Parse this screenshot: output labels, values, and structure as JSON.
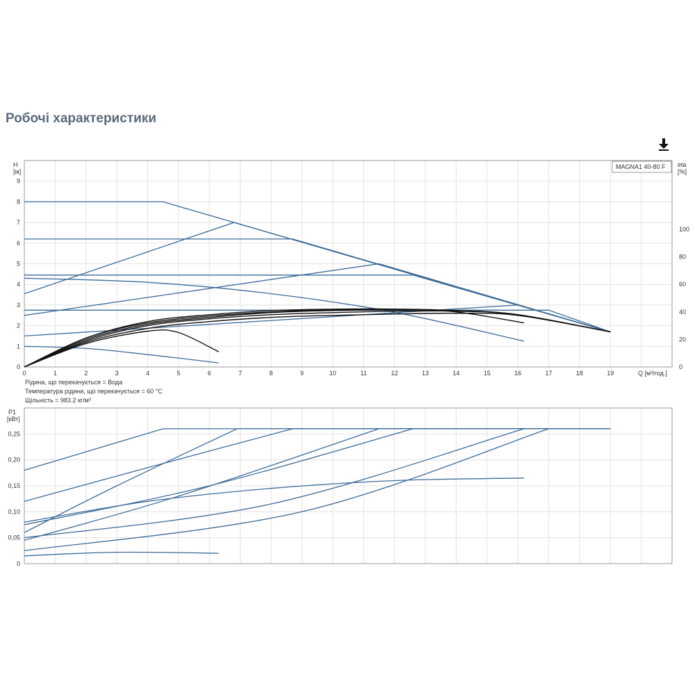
{
  "page": {
    "title": "Робочі характеристики",
    "download_icon": "download-icon"
  },
  "fluid_info": {
    "fluid": "Рідина, що перекачується = Вода",
    "temperature": "Температура рідини, що перекачується = 60 °C",
    "density": "Щільність = 983.2 кг/м³"
  },
  "chart_data": [
    {
      "type": "line",
      "title": "",
      "legend_label": "MAGNA1 40-80 F",
      "xlabel": "Q [м³/год.]",
      "ylabel": "H\n[м]",
      "y2label": "eta\n[%]",
      "xlim": [
        0,
        21
      ],
      "ylim": [
        0,
        10
      ],
      "y2lim": [
        0,
        150
      ],
      "x_ticks": [
        0,
        1,
        2,
        3,
        4,
        5,
        6,
        7,
        8,
        9,
        10,
        11,
        12,
        13,
        14,
        15,
        16,
        17,
        18,
        19
      ],
      "y_ticks": [
        0,
        1,
        2,
        3,
        4,
        5,
        6,
        7,
        8,
        9
      ],
      "y2_ticks": [
        0,
        20,
        40,
        60,
        80,
        100
      ],
      "grid": true,
      "colors": {
        "pump_curve": "#3b6a99",
        "efficiency_curve": "#111111"
      },
      "series": [
        {
          "kind": "constant-curve",
          "x": [
            0,
            4.5,
            19.0
          ],
          "y": [
            8.0,
            8.0,
            1.7
          ]
        },
        {
          "kind": "constant-curve",
          "x": [
            0,
            8.7,
            19.0
          ],
          "y": [
            6.2,
            6.2,
            1.7
          ]
        },
        {
          "kind": "constant-curve",
          "x": [
            0,
            12.6,
            19.0
          ],
          "y": [
            4.45,
            4.45,
            1.7
          ]
        },
        {
          "kind": "constant-curve",
          "x": [
            0,
            17.0,
            19.0
          ],
          "y": [
            2.75,
            2.75,
            1.7
          ]
        },
        {
          "kind": "proportional",
          "x": [
            0,
            6.8,
            19.0
          ],
          "y": [
            3.55,
            7.0,
            1.7
          ]
        },
        {
          "kind": "proportional",
          "x": [
            0,
            11.5,
            19.0
          ],
          "y": [
            2.5,
            5.0,
            1.7
          ]
        },
        {
          "kind": "proportional",
          "x": [
            0,
            16.0,
            19.0
          ],
          "y": [
            1.5,
            3.0,
            1.7
          ]
        },
        {
          "kind": "autoadapt-max",
          "x": [
            0,
            4,
            8,
            12,
            16.2
          ],
          "y": [
            4.3,
            4.1,
            3.55,
            2.65,
            1.25
          ]
        },
        {
          "kind": "min",
          "x": [
            0,
            2,
            4,
            6.3
          ],
          "y": [
            1.0,
            0.9,
            0.6,
            0.2
          ]
        },
        {
          "kind": "efficiency",
          "x": [
            0,
            2,
            4,
            5,
            6.3
          ],
          "y": [
            0,
            17,
            26,
            25,
            11
          ]
        },
        {
          "kind": "efficiency",
          "x": [
            0,
            2,
            4,
            6,
            8,
            10,
            12,
            14,
            16.2
          ],
          "y": [
            0,
            21,
            33,
            38,
            41,
            42,
            42,
            40,
            32
          ]
        },
        {
          "kind": "efficiency",
          "x": [
            0,
            2,
            4,
            6,
            8,
            10,
            12,
            14,
            16,
            19.0
          ],
          "y": [
            0,
            21,
            32,
            37,
            40,
            41.5,
            42,
            41,
            38,
            25.5
          ]
        },
        {
          "kind": "efficiency",
          "x": [
            0,
            2,
            4,
            6,
            8,
            10,
            12,
            14,
            16,
            19.0
          ],
          "y": [
            0,
            20,
            31,
            36,
            39.5,
            41,
            41.5,
            41,
            38,
            25.5
          ]
        },
        {
          "kind": "efficiency",
          "x": [
            0,
            2,
            4,
            6,
            8,
            10,
            12,
            14,
            16,
            19.0
          ],
          "y": [
            0,
            19,
            30,
            35,
            38,
            39.5,
            40.5,
            40.5,
            38,
            25.5
          ]
        },
        {
          "kind": "efficiency",
          "x": [
            0,
            2,
            4,
            6,
            8,
            10,
            12,
            14,
            16,
            19.0
          ],
          "y": [
            0,
            18,
            28,
            33,
            36,
            37.5,
            38.5,
            39,
            37.5,
            25.5
          ]
        }
      ]
    },
    {
      "type": "line",
      "title": "",
      "xlabel": "",
      "ylabel": "P1\n[кВт]",
      "xlim": [
        0,
        21
      ],
      "ylim": [
        0,
        0.3
      ],
      "y_ticks": [
        0,
        0.05,
        0.1,
        0.15,
        0.2,
        0.25
      ],
      "y_tick_labels": [
        "0",
        "0,05",
        "0,10",
        "0,15",
        "0,20",
        "0,25"
      ],
      "grid": true,
      "colors": {
        "power_curve": "#3b6a99"
      },
      "series": [
        {
          "x": [
            0,
            4.5,
            19.0
          ],
          "y": [
            0.18,
            0.26,
            0.26
          ]
        },
        {
          "x": [
            0,
            3,
            6.9,
            19.0
          ],
          "y": [
            0.06,
            0.15,
            0.26,
            0.26
          ]
        },
        {
          "x": [
            0,
            4,
            8.7,
            19.0
          ],
          "y": [
            0.12,
            0.185,
            0.26,
            0.26
          ]
        },
        {
          "x": [
            0,
            5,
            11.5,
            19.0
          ],
          "y": [
            0.045,
            0.13,
            0.26,
            0.26
          ]
        },
        {
          "x": [
            0,
            6,
            12.6,
            19.0
          ],
          "y": [
            0.075,
            0.15,
            0.26,
            0.26
          ]
        },
        {
          "x": [
            0,
            8,
            16.2,
            19.0
          ],
          "y": [
            0.05,
            0.115,
            0.26,
            0.26
          ]
        },
        {
          "x": [
            0,
            9,
            17.0,
            19.0
          ],
          "y": [
            0.025,
            0.1,
            0.26,
            0.26
          ]
        },
        {
          "x": [
            0,
            4,
            8,
            12,
            16.2
          ],
          "y": [
            0.08,
            0.12,
            0.145,
            0.16,
            0.165
          ]
        },
        {
          "x": [
            0,
            3,
            6.3
          ],
          "y": [
            0.015,
            0.022,
            0.02
          ]
        }
      ]
    }
  ]
}
